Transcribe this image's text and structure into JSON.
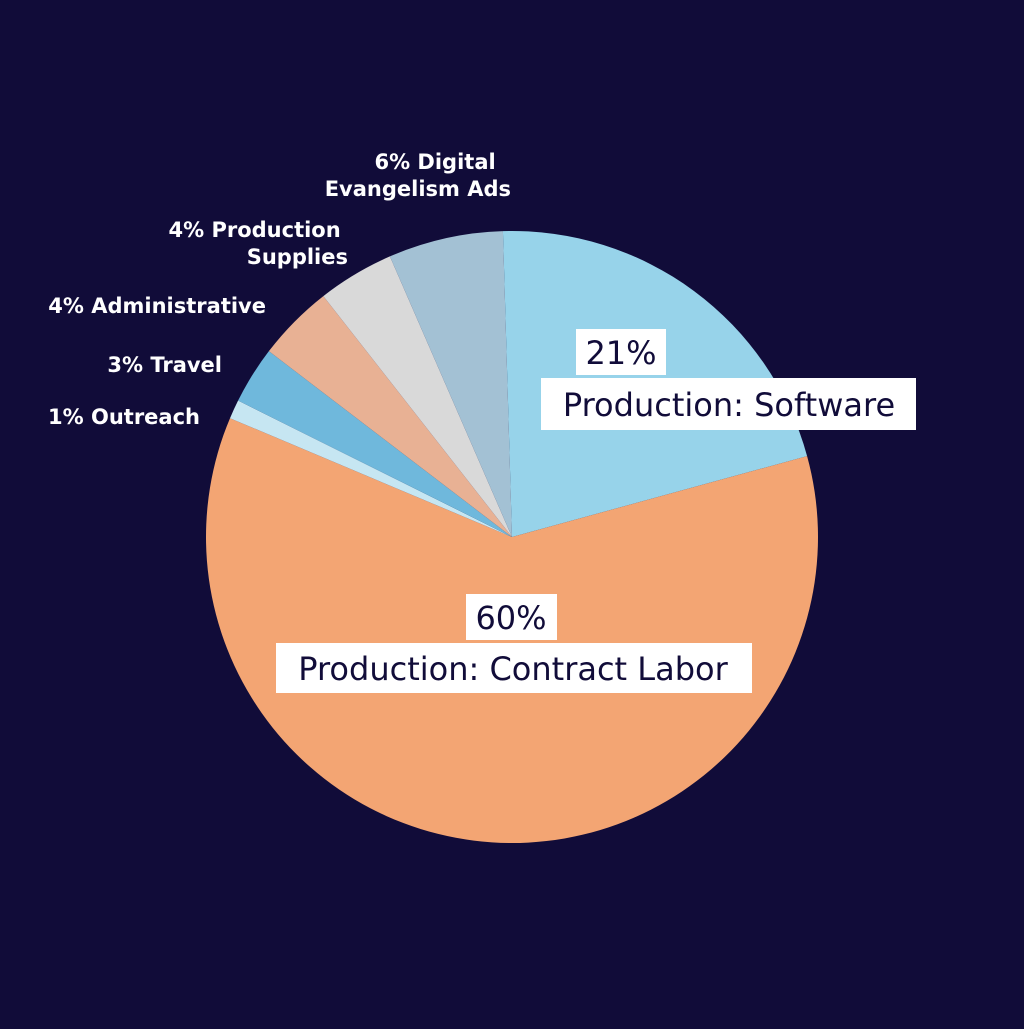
{
  "background_color": "#110c39",
  "chart_data": {
    "type": "pie",
    "title": "",
    "slices": [
      {
        "label": "Production: Software",
        "value": 21,
        "value_text": "21%",
        "color": "#97d3ea",
        "label_style": "inside-boxed"
      },
      {
        "label": "Production: Contract Labor",
        "value": 60,
        "value_text": "60%",
        "color": "#f3a573",
        "label_style": "inside-boxed"
      },
      {
        "label": "Outreach",
        "value": 1,
        "value_text": "1%",
        "color": "#c6e6f2",
        "label_style": "outside"
      },
      {
        "label": "Travel",
        "value": 3,
        "value_text": "3%",
        "color": "#6fb8dc",
        "label_style": "outside"
      },
      {
        "label": "Administrative",
        "value": 4,
        "value_text": "4%",
        "color": "#e8b194",
        "label_style": "outside"
      },
      {
        "label": "Production Supplies",
        "value": 4,
        "value_text": "4%",
        "color": "#d9d9d9",
        "label_style": "outside"
      },
      {
        "label": "Digital Evangelism Ads",
        "value": 6,
        "value_text": "6%",
        "color": "#a3c1d4",
        "label_style": "outside"
      }
    ],
    "outer_labels": [
      {
        "lines": [
          "1% Outreach"
        ]
      },
      {
        "lines": [
          "3% Travel"
        ]
      },
      {
        "lines": [
          "4% Administrative"
        ]
      },
      {
        "lines": [
          "4% Production",
          "Supplies"
        ]
      },
      {
        "lines": [
          "6% Digital",
          "Evangelism Ads"
        ]
      }
    ],
    "inner_labels": [
      {
        "percent": "21%",
        "name": "Production: Software"
      },
      {
        "percent": "60%",
        "name": "Production: Contract Labor"
      }
    ],
    "label_box_color": "#ffffff",
    "inner_text_color": "#110c39",
    "outer_text_color": "#ffffff",
    "legend": "none"
  }
}
